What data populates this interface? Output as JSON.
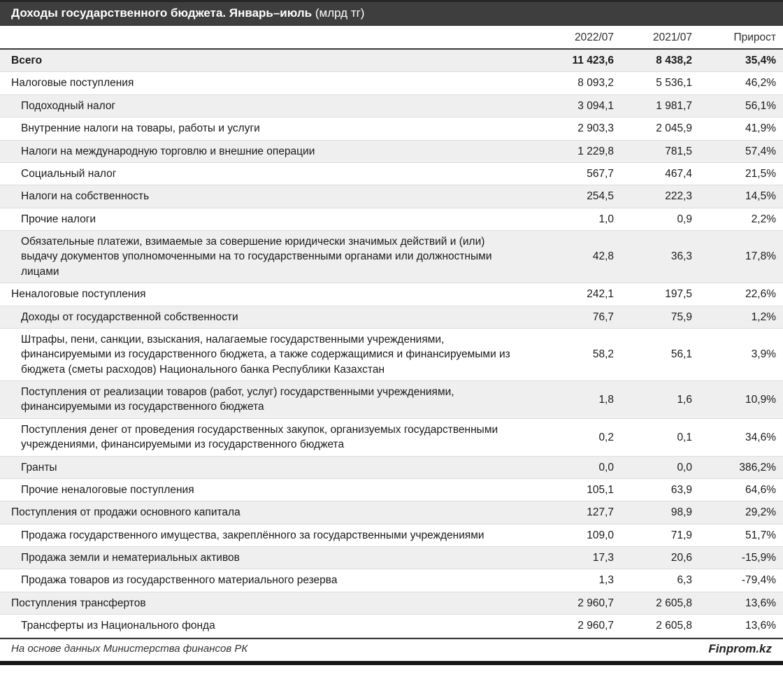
{
  "title": {
    "main": "Доходы государственного бюджета. Январь–июль",
    "unit": "(млрд тг)"
  },
  "chart_data": {
    "type": "table",
    "title": "Доходы государственного бюджета. Январь–июль (млрд тг)",
    "columns": [
      "2022/07",
      "2021/07",
      "Прирост"
    ],
    "rows": [
      {
        "label": "Всего",
        "indent": false,
        "bold": true,
        "values": [
          "11 423,6",
          "8 438,2"
        ],
        "growth": "35,4%"
      },
      {
        "label": "Налоговые поступления",
        "indent": false,
        "bold": false,
        "values": [
          "8 093,2",
          "5 536,1"
        ],
        "growth": "46,2%"
      },
      {
        "label": "Подоходный налог",
        "indent": true,
        "bold": false,
        "values": [
          "3 094,1",
          "1 981,7"
        ],
        "growth": "56,1%"
      },
      {
        "label": "Внутренние налоги на товары, работы и услуги",
        "indent": true,
        "bold": false,
        "values": [
          "2 903,3",
          "2 045,9"
        ],
        "growth": "41,9%"
      },
      {
        "label": "Налоги на международную торговлю и внешние операции",
        "indent": true,
        "bold": false,
        "values": [
          "1 229,8",
          "781,5"
        ],
        "growth": "57,4%"
      },
      {
        "label": "Социальный налог",
        "indent": true,
        "bold": false,
        "values": [
          "567,7",
          "467,4"
        ],
        "growth": "21,5%"
      },
      {
        "label": "Налоги на собственность",
        "indent": true,
        "bold": false,
        "values": [
          "254,5",
          "222,3"
        ],
        "growth": "14,5%"
      },
      {
        "label": "Прочие налоги",
        "indent": true,
        "bold": false,
        "values": [
          "1,0",
          "0,9"
        ],
        "growth": "2,2%"
      },
      {
        "label": "Обязательные платежи, взимаемые за совершение юридически значимых действий и (или) выдачу документов уполномоченными на то государственными органами или должностными лицами",
        "indent": true,
        "bold": false,
        "values": [
          "42,8",
          "36,3"
        ],
        "growth": "17,8%"
      },
      {
        "label": "Неналоговые поступления",
        "indent": false,
        "bold": false,
        "values": [
          "242,1",
          "197,5"
        ],
        "growth": "22,6%"
      },
      {
        "label": "Доходы от государственной собственности",
        "indent": true,
        "bold": false,
        "values": [
          "76,7",
          "75,9"
        ],
        "growth": "1,2%"
      },
      {
        "label": "Штрафы, пени, санкции, взыскания, налагаемые государственными учреждениями, финансируемыми из государственного бюджета, а также содержащимися и финансируемыми из бюджета (сметы расходов) Национального банка Республики Казахстан",
        "indent": true,
        "bold": false,
        "values": [
          "58,2",
          "56,1"
        ],
        "growth": "3,9%"
      },
      {
        "label": "Поступления от реализации товаров (работ, услуг) государственными учреждениями, финансируемыми из государственного бюджета",
        "indent": true,
        "bold": false,
        "values": [
          "1,8",
          "1,6"
        ],
        "growth": "10,9%"
      },
      {
        "label": "Поступления денег от проведения государственных закупок, организуемых государственными учреждениями, финансируемыми из государственного бюджета",
        "indent": true,
        "bold": false,
        "values": [
          "0,2",
          "0,1"
        ],
        "growth": "34,6%"
      },
      {
        "label": "Гранты",
        "indent": true,
        "bold": false,
        "values": [
          "0,0",
          "0,0"
        ],
        "growth": "386,2%"
      },
      {
        "label": "Прочие неналоговые поступления",
        "indent": true,
        "bold": false,
        "values": [
          "105,1",
          "63,9"
        ],
        "growth": "64,6%"
      },
      {
        "label": "Поступления от продажи основного капитала",
        "indent": false,
        "bold": false,
        "values": [
          "127,7",
          "98,9"
        ],
        "growth": "29,2%"
      },
      {
        "label": "Продажа государственного имущества, закреплённого за государственными учреждениями",
        "indent": true,
        "bold": false,
        "values": [
          "109,0",
          "71,9"
        ],
        "growth": "51,7%"
      },
      {
        "label": "Продажа земли и нематериальных активов",
        "indent": true,
        "bold": false,
        "values": [
          "17,3",
          "20,6"
        ],
        "growth": "-15,9%"
      },
      {
        "label": "Продажа товаров из государственного материального резерва",
        "indent": true,
        "bold": false,
        "values": [
          "1,3",
          "6,3"
        ],
        "growth": "-79,4%"
      },
      {
        "label": "Поступления трансфертов",
        "indent": false,
        "bold": false,
        "values": [
          "2 960,7",
          "2 605,8"
        ],
        "growth": "13,6%"
      },
      {
        "label": "Трансферты из Национального фонда",
        "indent": true,
        "bold": false,
        "values": [
          "2 960,7",
          "2 605,8"
        ],
        "growth": "13,6%"
      }
    ]
  },
  "footer": {
    "source": "На основе данных Министерства финансов РК",
    "brand": "Finprom.kz"
  },
  "colors": {
    "title_bar": "#3e3e3e",
    "title_text": "#ffffff",
    "stripe_row": "#efefef",
    "body_text": "#1a1a1a",
    "rule_dark": "#3a3a3a",
    "bottom_bar": "#161616"
  }
}
